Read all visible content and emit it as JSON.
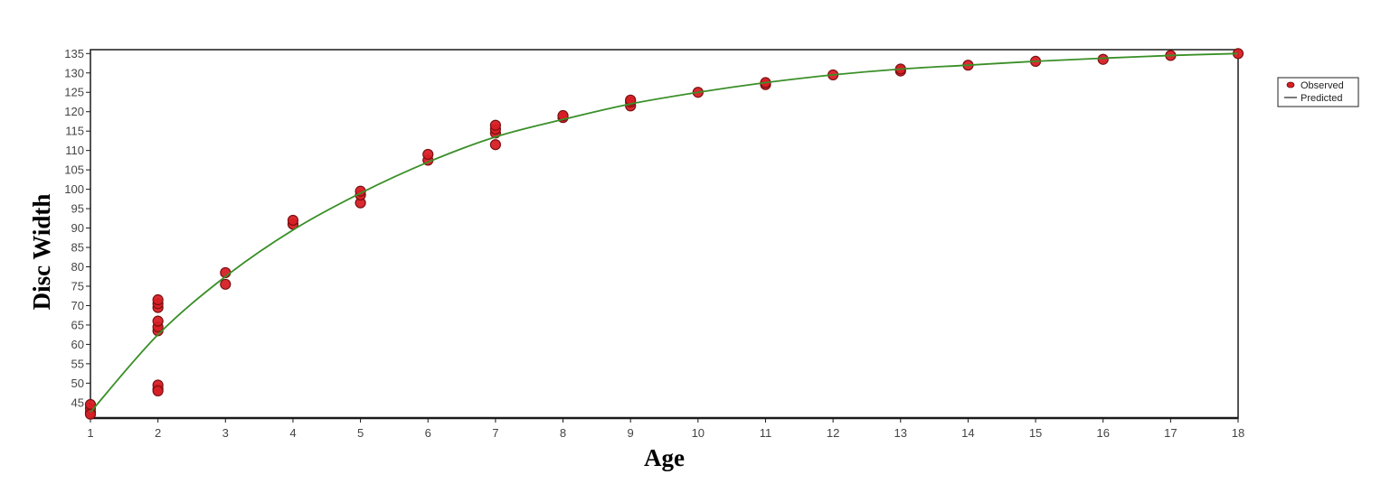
{
  "chart_data": {
    "type": "scatter",
    "xlabel": "Age",
    "ylabel": "Disc Width",
    "xlim": [
      1,
      18
    ],
    "ylim": [
      41,
      136
    ],
    "xticks": [
      1,
      2,
      3,
      4,
      5,
      6,
      7,
      8,
      9,
      10,
      11,
      12,
      13,
      14,
      15,
      16,
      17,
      18
    ],
    "yticks": [
      45,
      50,
      55,
      60,
      65,
      70,
      75,
      80,
      85,
      90,
      95,
      100,
      105,
      110,
      115,
      120,
      125,
      130,
      135
    ],
    "grid": false,
    "legend_position": "right",
    "series": [
      {
        "name": "Observed",
        "kind": "scatter",
        "color": "#d81f26",
        "points": [
          [
            1,
            42.5
          ],
          [
            1,
            43.5
          ],
          [
            1,
            44.5
          ],
          [
            1,
            42.0
          ],
          [
            2,
            48.5
          ],
          [
            2,
            49.5
          ],
          [
            2,
            48.0
          ],
          [
            2,
            63.5
          ],
          [
            2,
            64.5
          ],
          [
            2,
            66.0
          ],
          [
            2,
            69.5
          ],
          [
            2,
            70.5
          ],
          [
            2,
            71.5
          ],
          [
            3,
            75.5
          ],
          [
            3,
            78.5
          ],
          [
            4,
            91.0
          ],
          [
            4,
            92.0
          ],
          [
            5,
            96.5
          ],
          [
            5,
            98.5
          ],
          [
            5,
            99.5
          ],
          [
            6,
            107.5
          ],
          [
            6,
            109.0
          ],
          [
            7,
            111.5
          ],
          [
            7,
            114.5
          ],
          [
            7,
            115.5
          ],
          [
            7,
            116.5
          ],
          [
            8,
            118.5
          ],
          [
            8,
            119.0
          ],
          [
            9,
            121.5
          ],
          [
            9,
            122.5
          ],
          [
            9,
            123.0
          ],
          [
            10,
            125.0
          ],
          [
            11,
            127.0
          ],
          [
            11,
            127.5
          ],
          [
            12,
            129.5
          ],
          [
            13,
            130.5
          ],
          [
            13,
            131.0
          ],
          [
            14,
            132.0
          ],
          [
            15,
            133.0
          ],
          [
            16,
            133.5
          ],
          [
            17,
            134.5
          ],
          [
            18,
            135.0
          ]
        ]
      },
      {
        "name": "Predicted",
        "kind": "line",
        "color": "#3a8f28",
        "x": [
          1,
          2,
          3,
          4,
          5,
          6,
          7,
          8,
          9,
          10,
          11,
          12,
          13,
          14,
          15,
          16,
          17,
          18
        ],
        "y": [
          42.5,
          62.5,
          77.5,
          89.5,
          99.0,
          107.0,
          113.5,
          118.0,
          122.0,
          125.0,
          127.5,
          129.5,
          131.0,
          132.0,
          133.0,
          133.8,
          134.5,
          135.0
        ]
      }
    ]
  }
}
